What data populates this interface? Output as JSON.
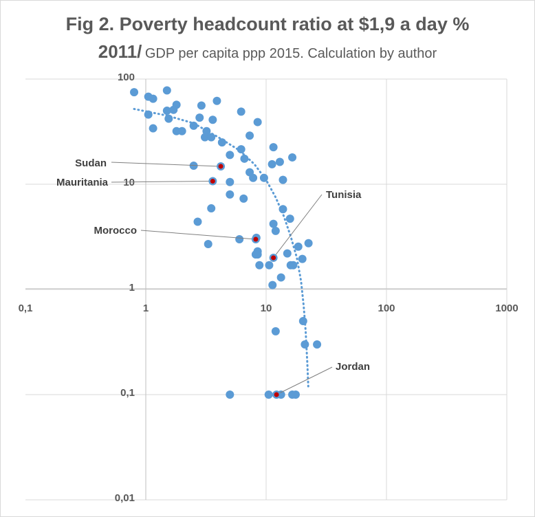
{
  "title": {
    "line1": "Fig 2. Poverty headcount ratio at $1,9 a day %",
    "line2_main": "2011/",
    "line2_sub": "GDP per capita ppp 2015. Calculation by author"
  },
  "chart_data": {
    "type": "scatter",
    "title": "Fig 2. Poverty headcount ratio at $1,9 a day % 2011/ GDP per capita ppp 2015. Calculation by author",
    "xlabel": "",
    "ylabel": "",
    "x_scale": "log",
    "y_scale": "log",
    "xlim": [
      0.1,
      1000
    ],
    "ylim": [
      0.01,
      100
    ],
    "x_ticks": [
      "0,1",
      "1",
      "10",
      "100",
      "1000"
    ],
    "y_ticks": [
      "0,01",
      "0,1",
      "1",
      "10",
      "100"
    ],
    "grid": true,
    "colors": {
      "points": "#5b9bd5",
      "highlight": "#c00000",
      "trend": "#5b9bd5"
    },
    "points": [
      {
        "x": 0.8,
        "y": 75
      },
      {
        "x": 1.05,
        "y": 68
      },
      {
        "x": 1.15,
        "y": 65
      },
      {
        "x": 1.5,
        "y": 78
      },
      {
        "x": 1.8,
        "y": 57
      },
      {
        "x": 1.5,
        "y": 50
      },
      {
        "x": 1.7,
        "y": 51
      },
      {
        "x": 1.05,
        "y": 46
      },
      {
        "x": 1.55,
        "y": 42
      },
      {
        "x": 2.9,
        "y": 56
      },
      {
        "x": 3.9,
        "y": 62
      },
      {
        "x": 6.2,
        "y": 49
      },
      {
        "x": 2.8,
        "y": 43
      },
      {
        "x": 3.6,
        "y": 41
      },
      {
        "x": 8.5,
        "y": 39
      },
      {
        "x": 1.15,
        "y": 34
      },
      {
        "x": 2.5,
        "y": 36
      },
      {
        "x": 1.8,
        "y": 32
      },
      {
        "x": 2.0,
        "y": 32
      },
      {
        "x": 3.2,
        "y": 32
      },
      {
        "x": 7.3,
        "y": 29
      },
      {
        "x": 3.1,
        "y": 28
      },
      {
        "x": 3.5,
        "y": 28
      },
      {
        "x": 4.3,
        "y": 25
      },
      {
        "x": 11.5,
        "y": 22.5
      },
      {
        "x": 6.2,
        "y": 21.5
      },
      {
        "x": 5.0,
        "y": 19
      },
      {
        "x": 6.6,
        "y": 17.5
      },
      {
        "x": 16.5,
        "y": 18
      },
      {
        "x": 13,
        "y": 16.3
      },
      {
        "x": 11.2,
        "y": 15.5
      },
      {
        "x": 2.5,
        "y": 15
      },
      {
        "x": 7.3,
        "y": 13
      },
      {
        "x": 7.8,
        "y": 11.5
      },
      {
        "x": 9.6,
        "y": 11.5
      },
      {
        "x": 13.8,
        "y": 11
      },
      {
        "x": 5.0,
        "y": 10.5
      },
      {
        "x": 5.0,
        "y": 8
      },
      {
        "x": 6.5,
        "y": 7.3
      },
      {
        "x": 13.8,
        "y": 5.8
      },
      {
        "x": 3.5,
        "y": 5.9
      },
      {
        "x": 15.8,
        "y": 4.7
      },
      {
        "x": 2.7,
        "y": 4.4
      },
      {
        "x": 11.5,
        "y": 4.2
      },
      {
        "x": 12,
        "y": 3.6
      },
      {
        "x": 8.3,
        "y": 3.1
      },
      {
        "x": 6.0,
        "y": 3.0
      },
      {
        "x": 3.3,
        "y": 2.7
      },
      {
        "x": 22.5,
        "y": 2.75
      },
      {
        "x": 18.5,
        "y": 2.55
      },
      {
        "x": 8.5,
        "y": 2.3
      },
      {
        "x": 8.2,
        "y": 2.15
      },
      {
        "x": 15,
        "y": 2.2
      },
      {
        "x": 8.5,
        "y": 2.15
      },
      {
        "x": 20,
        "y": 1.95
      },
      {
        "x": 8.8,
        "y": 1.7
      },
      {
        "x": 10.6,
        "y": 1.7
      },
      {
        "x": 16,
        "y": 1.7
      },
      {
        "x": 16.8,
        "y": 1.7
      },
      {
        "x": 13.3,
        "y": 1.3
      },
      {
        "x": 11.3,
        "y": 1.1
      },
      {
        "x": 20.3,
        "y": 0.5
      },
      {
        "x": 12,
        "y": 0.4
      },
      {
        "x": 21,
        "y": 0.3
      },
      {
        "x": 26.5,
        "y": 0.3
      },
      {
        "x": 5.0,
        "y": 0.1
      },
      {
        "x": 10.5,
        "y": 0.1
      },
      {
        "x": 13.3,
        "y": 0.1
      },
      {
        "x": 16.5,
        "y": 0.1
      },
      {
        "x": 17.6,
        "y": 0.1
      }
    ],
    "highlighted": [
      {
        "label": "Sudan",
        "x": 4.2,
        "y": 14.8
      },
      {
        "label": "Mauritania",
        "x": 3.6,
        "y": 10.7
      },
      {
        "label": "Morocco",
        "x": 8.2,
        "y": 3.0
      },
      {
        "label": "Tunisia",
        "x": 11.5,
        "y": 2.0
      },
      {
        "label": "Jordan",
        "x": 12.2,
        "y": 0.1
      }
    ],
    "trendline": {
      "style": "dotted",
      "points": [
        {
          "x": 0.8,
          "y": 52
        },
        {
          "x": 1.5,
          "y": 45
        },
        {
          "x": 2.5,
          "y": 38
        },
        {
          "x": 4,
          "y": 28
        },
        {
          "x": 6,
          "y": 21
        },
        {
          "x": 8,
          "y": 15.5
        },
        {
          "x": 10,
          "y": 11
        },
        {
          "x": 12,
          "y": 7.5
        },
        {
          "x": 14,
          "y": 5
        },
        {
          "x": 16,
          "y": 3.2
        },
        {
          "x": 18,
          "y": 2
        },
        {
          "x": 19.5,
          "y": 1.2
        },
        {
          "x": 20.5,
          "y": 0.7
        },
        {
          "x": 21.3,
          "y": 0.4
        },
        {
          "x": 22,
          "y": 0.2
        },
        {
          "x": 22.4,
          "y": 0.12
        }
      ]
    }
  }
}
